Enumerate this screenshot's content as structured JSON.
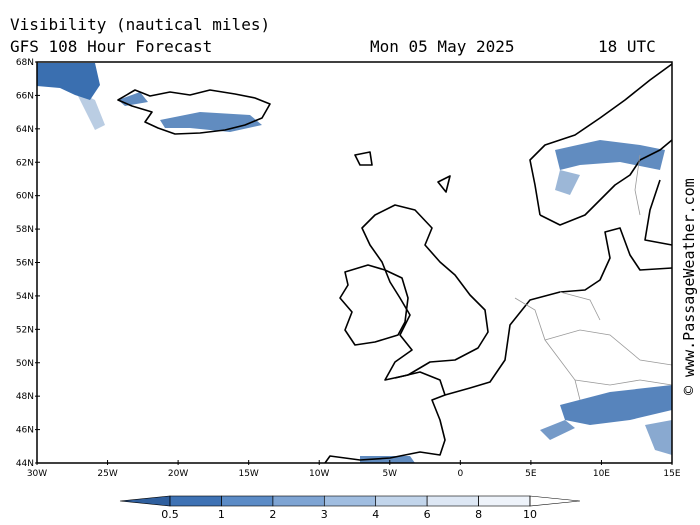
{
  "header": {
    "title": "Visibility (nautical miles)",
    "subtitle": "GFS 108 Hour Forecast",
    "date": "Mon 05 May 2025",
    "time": "18 UTC"
  },
  "map": {
    "lat_labels": [
      "68N",
      "66N",
      "64N",
      "62N",
      "60N",
      "58N",
      "56N",
      "54N",
      "52N",
      "50N",
      "48N",
      "46N",
      "44N"
    ],
    "lon_labels": [
      "30W",
      "25W",
      "20W",
      "15W",
      "10W",
      "5W",
      "0",
      "5E",
      "10E",
      "15E"
    ]
  },
  "colorbar": {
    "ticks": [
      0.5,
      1,
      2,
      3,
      4,
      6,
      8,
      10
    ],
    "colors": [
      "#2f5f9e",
      "#3e72b4",
      "#5b8bc6",
      "#7ea4d3",
      "#a0bde0",
      "#c2d5eb",
      "#dde7f4",
      "#eef3fa",
      "#ffffff"
    ]
  },
  "credit": "© www.PassageWeather.com"
}
